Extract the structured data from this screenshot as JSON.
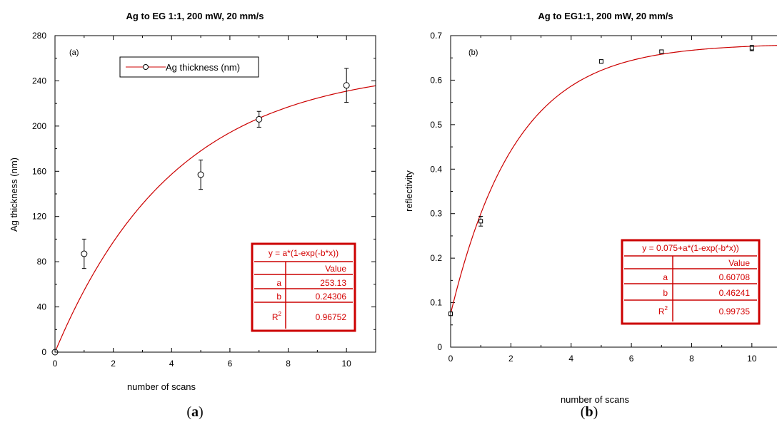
{
  "chart_data": [
    {
      "type": "scatter",
      "title": "Ag to EG 1:1, 200 mW, 20 mm/s",
      "panel_label": "(a)",
      "caption": "a",
      "xlabel": "number of scans",
      "ylabel": "Ag thickness (nm)",
      "xlim": [
        0,
        11
      ],
      "ylim": [
        0,
        280
      ],
      "x_ticks": [
        "0",
        "2",
        "4",
        "6",
        "8",
        "10"
      ],
      "y_ticks": [
        "0",
        "40",
        "80",
        "120",
        "160",
        "200",
        "240",
        "280"
      ],
      "series": [
        {
          "name": "Ag thickness (nm)",
          "marker": "circle",
          "x": [
            0,
            1,
            5,
            7,
            10
          ],
          "y": [
            0,
            87,
            157,
            206,
            236
          ],
          "yerr": [
            0,
            13,
            13,
            7,
            15
          ]
        }
      ],
      "fit": {
        "equation": "y = a*(1-exp(-b*x))",
        "offset": 0,
        "a": 253.13,
        "b": 0.24306,
        "color": "#cc0000"
      },
      "fit_table": {
        "title": "y = a*(1-exp(-b*x))",
        "header": "Value",
        "rows": [
          {
            "name": "a",
            "value": "253.13"
          },
          {
            "name": "b",
            "value": "0.24306"
          },
          {
            "name": "R",
            "sup": "2",
            "value": "0.96752"
          }
        ]
      },
      "legend_position": "top-left",
      "grid": false
    },
    {
      "type": "scatter",
      "title": "Ag to EG1:1, 200 mW, 20 mm/s",
      "panel_label": "(b)",
      "caption": "b",
      "xlabel": "number of scans",
      "ylabel": "reflectivity",
      "xlim": [
        0,
        11
      ],
      "ylim": [
        0,
        0.7
      ],
      "x_ticks": [
        "0",
        "2",
        "4",
        "6",
        "8",
        "10"
      ],
      "y_ticks": [
        "0",
        "0.1",
        "0.2",
        "0.3",
        "0.4",
        "0.5",
        "0.6",
        "0.7"
      ],
      "series": [
        {
          "marker": "square",
          "x": [
            0,
            1,
            5,
            7,
            10
          ],
          "y": [
            0.075,
            0.283,
            0.642,
            0.664,
            0.672
          ],
          "yerr": [
            0.004,
            0.011,
            0.004,
            0.004,
            0.006
          ]
        }
      ],
      "fit": {
        "equation": "y = 0.075+a*(1-exp(-b*x))",
        "offset": 0.075,
        "a": 0.60708,
        "b": 0.46241,
        "color": "#cc0000"
      },
      "fit_table": {
        "title": "y = 0.075+a*(1-exp(-b*x))",
        "header": "Value",
        "rows": [
          {
            "name": "a",
            "value": "0.60708"
          },
          {
            "name": "b",
            "value": "0.46241"
          },
          {
            "name": "R",
            "sup": "2",
            "value": "0.99735"
          }
        ]
      },
      "grid": false
    }
  ]
}
